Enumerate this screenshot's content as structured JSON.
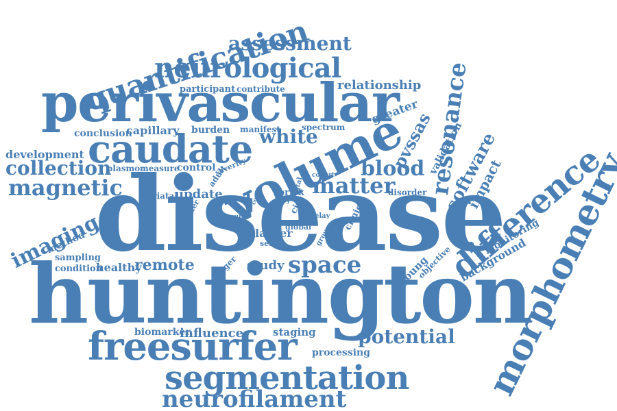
{
  "word_cloud": {
    "color": "#4a7fb5",
    "words": [
      {
        "id": "disease",
        "text": "disease"
      },
      {
        "id": "huntington",
        "text": "huntington"
      },
      {
        "id": "perivascular",
        "text": "perivascular"
      },
      {
        "id": "volume",
        "text": "volume"
      },
      {
        "id": "caudate",
        "text": "caudate"
      },
      {
        "id": "morphometry",
        "text": "morphometry"
      },
      {
        "id": "difference",
        "text": "difference"
      },
      {
        "id": "quantification",
        "text": "quantification"
      },
      {
        "id": "neurological",
        "text": "neurological"
      },
      {
        "id": "assessment",
        "text": "assessment"
      },
      {
        "id": "freesurfer",
        "text": "freesurfer"
      },
      {
        "id": "segmentation",
        "text": "segmentation"
      },
      {
        "id": "neurofilament",
        "text": "neurofilament"
      },
      {
        "id": "resonance",
        "text": "resonance"
      },
      {
        "id": "magnetic",
        "text": "magnetic"
      },
      {
        "id": "collection",
        "text": "collection"
      },
      {
        "id": "development",
        "text": "development"
      },
      {
        "id": "imaging",
        "text": "imaging"
      },
      {
        "id": "matter",
        "text": "matter"
      },
      {
        "id": "blood",
        "text": "blood"
      },
      {
        "id": "white",
        "text": "white"
      },
      {
        "id": "space",
        "text": "space"
      },
      {
        "id": "potential",
        "text": "potential"
      },
      {
        "id": "remote",
        "text": "remote"
      },
      {
        "id": "relationship",
        "text": "relationship"
      },
      {
        "id": "greater",
        "text": "greater"
      },
      {
        "id": "pvssas",
        "text": "pvssas"
      },
      {
        "id": "software",
        "text": "software"
      },
      {
        "id": "validation",
        "text": "validation"
      },
      {
        "id": "impact",
        "text": "impact"
      },
      {
        "id": "update",
        "text": "update"
      },
      {
        "id": "influence",
        "text": "influence"
      },
      {
        "id": "biomarker",
        "text": "biomarker"
      },
      {
        "id": "staging",
        "text": "staging"
      },
      {
        "id": "processing",
        "text": "processing"
      },
      {
        "id": "study",
        "text": "study"
      },
      {
        "id": "larger",
        "text": "larger"
      },
      {
        "id": "serum",
        "text": "serum"
      },
      {
        "id": "healthy",
        "text": "healthy"
      },
      {
        "id": "condition",
        "text": "condition"
      },
      {
        "id": "sampling",
        "text": "sampling"
      },
      {
        "id": "method",
        "text": "method"
      },
      {
        "id": "conclusion",
        "text": "conclusion"
      },
      {
        "id": "capillary",
        "text": "capillary"
      },
      {
        "id": "burden",
        "text": "burden"
      },
      {
        "id": "manifest",
        "text": "manifest"
      },
      {
        "id": "spectrum",
        "text": "spectrum"
      },
      {
        "id": "participant",
        "text": "participant"
      },
      {
        "id": "contribute",
        "text": "contribute"
      },
      {
        "id": "plasmon",
        "text": "plasmon"
      },
      {
        "id": "measure",
        "text": "measure"
      },
      {
        "id": "control",
        "text": "control"
      },
      {
        "id": "severity",
        "text": "severity"
      },
      {
        "id": "adult",
        "text": "adult"
      },
      {
        "id": "cohort",
        "text": "cohort"
      },
      {
        "id": "striatal",
        "text": "striatal"
      },
      {
        "id": "smaller",
        "text": "smaller"
      },
      {
        "id": "prick",
        "text": "prick"
      },
      {
        "id": "grey",
        "text": "grey"
      },
      {
        "id": "total",
        "text": "total"
      },
      {
        "id": "count",
        "text": "count"
      },
      {
        "id": "city",
        "text": "city"
      },
      {
        "id": "light",
        "text": "light"
      },
      {
        "id": "result",
        "text": "result"
      },
      {
        "id": "disp",
        "text": "disp"
      },
      {
        "id": "global",
        "text": "global"
      },
      {
        "id": "delay",
        "text": "delay"
      },
      {
        "id": "clinical",
        "text": "clinical"
      },
      {
        "id": "group",
        "text": "group"
      },
      {
        "id": "disorder",
        "text": "disorder"
      },
      {
        "id": "finger",
        "text": "finger"
      },
      {
        "id": "young",
        "text": "young"
      },
      {
        "id": "objective",
        "text": "objective"
      },
      {
        "id": "background",
        "text": "background"
      },
      {
        "id": "monitoring",
        "text": "monitoring"
      }
    ]
  }
}
